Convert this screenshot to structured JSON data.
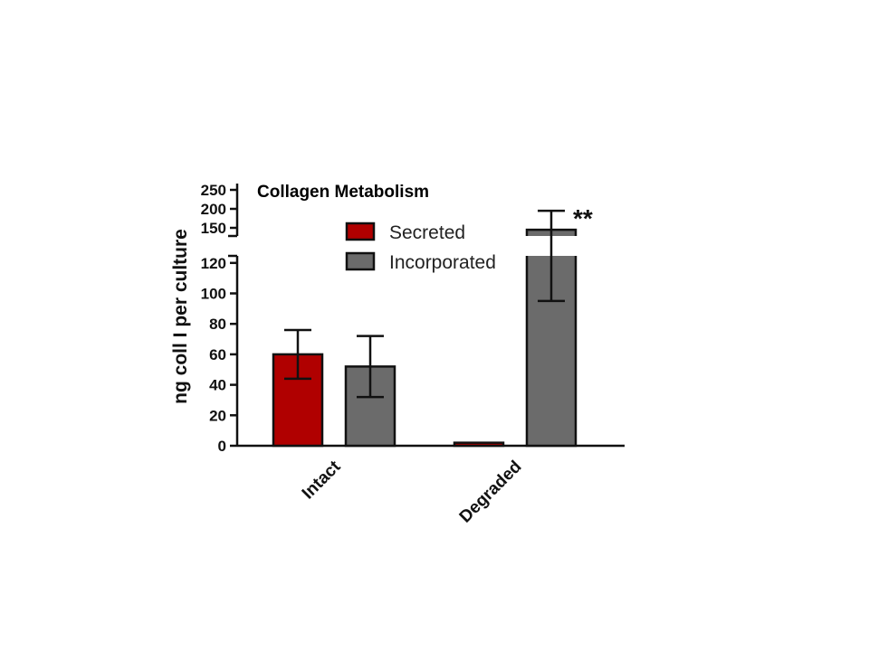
{
  "chart_data": {
    "type": "bar",
    "title": "Collagen Metabolism",
    "ylabel": "ng coll I per culture",
    "xlabel": "",
    "categories": [
      "Intact",
      "Degraded"
    ],
    "series": [
      {
        "name": "Secreted",
        "color": "#b00000",
        "values": [
          60,
          2
        ],
        "error": [
          16,
          0
        ]
      },
      {
        "name": "Incorporated",
        "color": "#6b6b6b",
        "values": [
          52,
          145
        ],
        "error": [
          20,
          50
        ]
      }
    ],
    "axis": {
      "lower_range": [
        0,
        130
      ],
      "lower_ticks": [
        "0",
        "20",
        "40",
        "60",
        "80",
        "100",
        "120"
      ],
      "upper_range": [
        125,
        260
      ],
      "upper_ticks": [
        "150",
        "200",
        "250"
      ],
      "broken": true
    },
    "annotations": [
      {
        "text": "**",
        "category": "Degraded",
        "series": "Incorporated"
      }
    ],
    "legend_position": "top-center",
    "grid": false
  }
}
